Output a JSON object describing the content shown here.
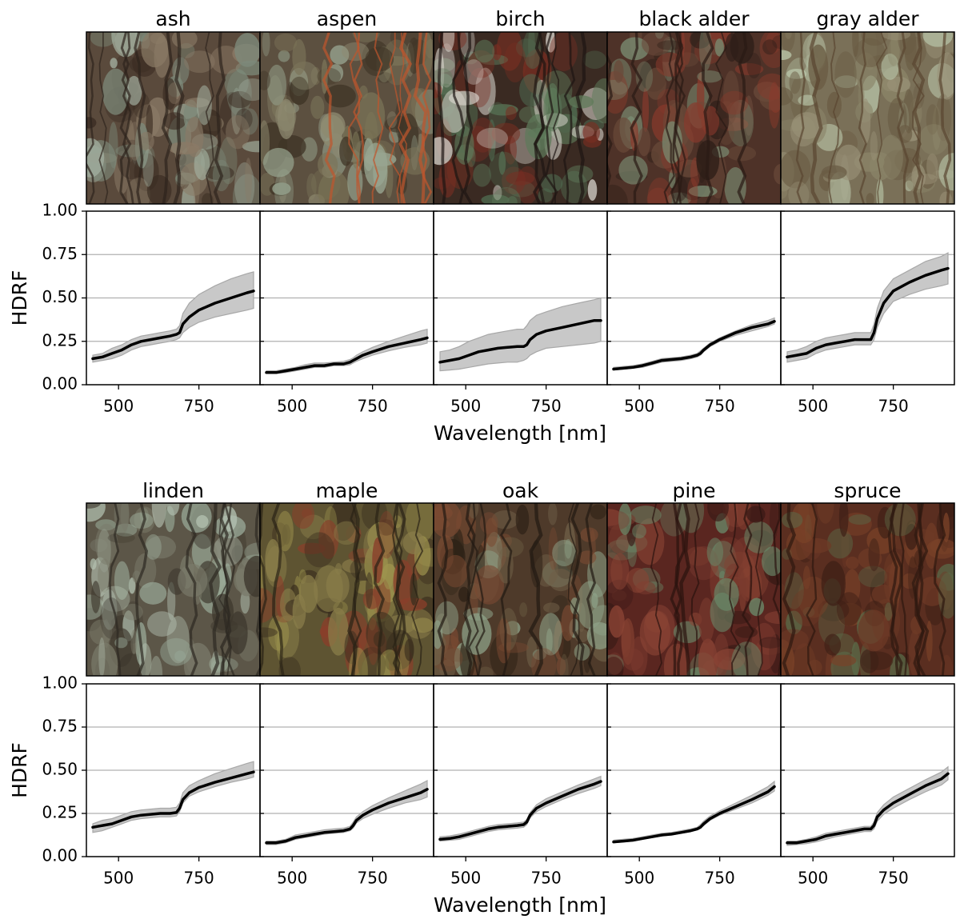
{
  "figure": {
    "xlabel": "Wavelength [nm]",
    "ylabel": "HDRF",
    "ylim": [
      0,
      1
    ],
    "xlim": [
      400,
      940
    ],
    "yticks": [
      "0.00",
      "0.25",
      "0.50",
      "0.75",
      "1.00"
    ],
    "ytick_values": [
      0,
      0.25,
      0.5,
      0.75,
      1.0
    ],
    "xticks": [
      "500",
      "750"
    ],
    "xtick_values": [
      500,
      750
    ],
    "grid": "horizontal",
    "colors": {
      "mean_line": "#000000",
      "band_fill": "#c8c8c8",
      "band_edge": "#a8a8a8",
      "grid": "#b0b0b0"
    }
  },
  "chart_data": [
    {
      "type": "area",
      "title": "ash",
      "photo": "ash-bark-photo",
      "x": [
        420,
        450,
        480,
        510,
        540,
        570,
        600,
        630,
        660,
        680,
        690,
        700,
        720,
        750,
        800,
        850,
        900,
        920
      ],
      "mean": [
        0.15,
        0.16,
        0.18,
        0.2,
        0.23,
        0.25,
        0.26,
        0.27,
        0.28,
        0.29,
        0.3,
        0.35,
        0.39,
        0.43,
        0.47,
        0.5,
        0.53,
        0.54
      ],
      "lower": [
        0.13,
        0.14,
        0.15,
        0.17,
        0.2,
        0.22,
        0.23,
        0.24,
        0.25,
        0.26,
        0.27,
        0.3,
        0.33,
        0.36,
        0.39,
        0.41,
        0.43,
        0.44
      ],
      "upper": [
        0.17,
        0.18,
        0.21,
        0.23,
        0.26,
        0.28,
        0.29,
        0.3,
        0.31,
        0.32,
        0.34,
        0.41,
        0.47,
        0.52,
        0.57,
        0.61,
        0.64,
        0.65
      ]
    },
    {
      "type": "area",
      "title": "aspen",
      "photo": "aspen-bark-photo",
      "x": [
        420,
        450,
        480,
        510,
        540,
        570,
        600,
        630,
        660,
        680,
        690,
        700,
        720,
        750,
        800,
        850,
        900,
        920
      ],
      "mean": [
        0.07,
        0.07,
        0.08,
        0.09,
        0.1,
        0.11,
        0.11,
        0.12,
        0.12,
        0.13,
        0.14,
        0.15,
        0.17,
        0.19,
        0.22,
        0.24,
        0.26,
        0.27
      ],
      "lower": [
        0.065,
        0.065,
        0.07,
        0.08,
        0.09,
        0.1,
        0.1,
        0.11,
        0.11,
        0.115,
        0.125,
        0.135,
        0.15,
        0.17,
        0.195,
        0.215,
        0.23,
        0.24
      ],
      "upper": [
        0.08,
        0.08,
        0.09,
        0.1,
        0.115,
        0.125,
        0.125,
        0.13,
        0.135,
        0.145,
        0.155,
        0.17,
        0.19,
        0.215,
        0.25,
        0.28,
        0.31,
        0.32
      ]
    },
    {
      "type": "area",
      "title": "birch",
      "photo": "birch-bark-photo",
      "x": [
        420,
        450,
        480,
        510,
        540,
        570,
        600,
        630,
        660,
        680,
        690,
        700,
        720,
        750,
        800,
        850,
        900,
        920
      ],
      "mean": [
        0.13,
        0.14,
        0.15,
        0.17,
        0.19,
        0.2,
        0.21,
        0.215,
        0.22,
        0.22,
        0.23,
        0.26,
        0.29,
        0.31,
        0.33,
        0.35,
        0.37,
        0.37
      ],
      "lower": [
        0.08,
        0.085,
        0.09,
        0.1,
        0.11,
        0.12,
        0.125,
        0.13,
        0.13,
        0.14,
        0.15,
        0.17,
        0.19,
        0.21,
        0.22,
        0.23,
        0.24,
        0.25
      ],
      "upper": [
        0.19,
        0.2,
        0.22,
        0.25,
        0.27,
        0.29,
        0.3,
        0.31,
        0.32,
        0.32,
        0.34,
        0.37,
        0.4,
        0.42,
        0.45,
        0.47,
        0.49,
        0.5
      ]
    },
    {
      "type": "area",
      "title": "black alder",
      "photo": "black-alder-bark-photo",
      "x": [
        420,
        450,
        480,
        510,
        540,
        570,
        600,
        630,
        660,
        680,
        690,
        700,
        720,
        750,
        800,
        850,
        900,
        920
      ],
      "mean": [
        0.09,
        0.095,
        0.1,
        0.11,
        0.125,
        0.14,
        0.145,
        0.15,
        0.16,
        0.17,
        0.18,
        0.2,
        0.23,
        0.26,
        0.3,
        0.33,
        0.35,
        0.365
      ],
      "lower": [
        0.085,
        0.09,
        0.095,
        0.1,
        0.115,
        0.13,
        0.135,
        0.14,
        0.15,
        0.16,
        0.17,
        0.19,
        0.22,
        0.25,
        0.285,
        0.31,
        0.335,
        0.35
      ],
      "upper": [
        0.1,
        0.105,
        0.11,
        0.12,
        0.135,
        0.15,
        0.155,
        0.16,
        0.17,
        0.18,
        0.195,
        0.21,
        0.24,
        0.27,
        0.31,
        0.345,
        0.37,
        0.385
      ]
    },
    {
      "type": "area",
      "title": "gray alder",
      "photo": "gray-alder-bark-photo",
      "x": [
        420,
        450,
        480,
        510,
        540,
        570,
        600,
        630,
        660,
        680,
        690,
        700,
        720,
        750,
        800,
        850,
        900,
        920
      ],
      "mean": [
        0.16,
        0.17,
        0.18,
        0.21,
        0.23,
        0.24,
        0.25,
        0.26,
        0.26,
        0.26,
        0.3,
        0.38,
        0.47,
        0.54,
        0.59,
        0.63,
        0.66,
        0.67
      ],
      "lower": [
        0.13,
        0.14,
        0.15,
        0.18,
        0.2,
        0.21,
        0.22,
        0.23,
        0.23,
        0.23,
        0.26,
        0.33,
        0.41,
        0.48,
        0.52,
        0.55,
        0.57,
        0.58
      ],
      "upper": [
        0.19,
        0.2,
        0.22,
        0.25,
        0.27,
        0.28,
        0.29,
        0.3,
        0.3,
        0.3,
        0.35,
        0.44,
        0.54,
        0.61,
        0.66,
        0.71,
        0.74,
        0.76
      ]
    },
    {
      "type": "area",
      "title": "linden",
      "photo": "linden-bark-photo",
      "x": [
        420,
        450,
        480,
        510,
        540,
        570,
        600,
        630,
        660,
        680,
        690,
        700,
        720,
        750,
        800,
        850,
        900,
        920
      ],
      "mean": [
        0.17,
        0.18,
        0.19,
        0.21,
        0.23,
        0.24,
        0.245,
        0.25,
        0.25,
        0.255,
        0.28,
        0.33,
        0.37,
        0.4,
        0.43,
        0.455,
        0.48,
        0.49
      ],
      "lower": [
        0.14,
        0.15,
        0.17,
        0.19,
        0.21,
        0.22,
        0.225,
        0.23,
        0.23,
        0.235,
        0.26,
        0.31,
        0.35,
        0.375,
        0.405,
        0.43,
        0.45,
        0.46
      ],
      "upper": [
        0.19,
        0.21,
        0.22,
        0.24,
        0.26,
        0.27,
        0.275,
        0.28,
        0.28,
        0.285,
        0.31,
        0.37,
        0.41,
        0.44,
        0.48,
        0.51,
        0.54,
        0.55
      ]
    },
    {
      "type": "area",
      "title": "maple",
      "photo": "maple-bark-photo",
      "x": [
        420,
        450,
        480,
        510,
        540,
        570,
        600,
        630,
        660,
        680,
        690,
        700,
        720,
        750,
        800,
        850,
        900,
        920
      ],
      "mean": [
        0.08,
        0.08,
        0.09,
        0.11,
        0.12,
        0.13,
        0.14,
        0.145,
        0.15,
        0.16,
        0.18,
        0.21,
        0.24,
        0.27,
        0.31,
        0.34,
        0.37,
        0.39
      ],
      "lower": [
        0.07,
        0.07,
        0.08,
        0.1,
        0.11,
        0.12,
        0.13,
        0.135,
        0.14,
        0.15,
        0.165,
        0.195,
        0.22,
        0.245,
        0.28,
        0.31,
        0.33,
        0.345
      ],
      "upper": [
        0.09,
        0.09,
        0.1,
        0.125,
        0.135,
        0.145,
        0.155,
        0.16,
        0.165,
        0.175,
        0.2,
        0.23,
        0.26,
        0.295,
        0.34,
        0.38,
        0.42,
        0.44
      ]
    },
    {
      "type": "area",
      "title": "oak",
      "photo": "oak-bark-photo",
      "x": [
        420,
        450,
        480,
        510,
        540,
        570,
        600,
        630,
        660,
        680,
        690,
        700,
        720,
        750,
        800,
        850,
        900,
        920
      ],
      "mean": [
        0.1,
        0.105,
        0.115,
        0.13,
        0.145,
        0.16,
        0.17,
        0.175,
        0.18,
        0.185,
        0.2,
        0.24,
        0.28,
        0.31,
        0.35,
        0.39,
        0.42,
        0.435
      ],
      "lower": [
        0.09,
        0.095,
        0.1,
        0.115,
        0.13,
        0.145,
        0.155,
        0.16,
        0.165,
        0.17,
        0.185,
        0.225,
        0.26,
        0.29,
        0.33,
        0.365,
        0.395,
        0.41
      ],
      "upper": [
        0.115,
        0.12,
        0.13,
        0.145,
        0.16,
        0.175,
        0.185,
        0.19,
        0.195,
        0.2,
        0.215,
        0.255,
        0.3,
        0.335,
        0.375,
        0.415,
        0.45,
        0.465
      ]
    },
    {
      "type": "area",
      "title": "pine",
      "photo": "pine-bark-photo",
      "x": [
        420,
        450,
        480,
        510,
        540,
        570,
        600,
        630,
        660,
        680,
        690,
        700,
        720,
        750,
        800,
        850,
        900,
        920
      ],
      "mean": [
        0.085,
        0.09,
        0.095,
        0.105,
        0.115,
        0.125,
        0.13,
        0.14,
        0.15,
        0.16,
        0.17,
        0.19,
        0.22,
        0.25,
        0.29,
        0.33,
        0.375,
        0.405
      ],
      "lower": [
        0.08,
        0.085,
        0.09,
        0.1,
        0.11,
        0.12,
        0.125,
        0.135,
        0.145,
        0.155,
        0.165,
        0.18,
        0.21,
        0.24,
        0.275,
        0.31,
        0.355,
        0.38
      ],
      "upper": [
        0.095,
        0.1,
        0.105,
        0.115,
        0.125,
        0.135,
        0.14,
        0.15,
        0.16,
        0.17,
        0.185,
        0.205,
        0.235,
        0.265,
        0.31,
        0.355,
        0.405,
        0.435
      ]
    },
    {
      "type": "area",
      "title": "spruce",
      "photo": "spruce-bark-photo",
      "x": [
        420,
        450,
        480,
        510,
        540,
        570,
        600,
        630,
        660,
        680,
        690,
        700,
        720,
        750,
        800,
        850,
        900,
        920
      ],
      "mean": [
        0.08,
        0.08,
        0.09,
        0.1,
        0.12,
        0.13,
        0.14,
        0.15,
        0.16,
        0.16,
        0.18,
        0.23,
        0.27,
        0.31,
        0.36,
        0.41,
        0.45,
        0.48
      ],
      "lower": [
        0.065,
        0.07,
        0.075,
        0.085,
        0.1,
        0.115,
        0.125,
        0.135,
        0.145,
        0.145,
        0.16,
        0.205,
        0.245,
        0.28,
        0.33,
        0.375,
        0.415,
        0.445
      ],
      "upper": [
        0.09,
        0.09,
        0.1,
        0.115,
        0.135,
        0.145,
        0.155,
        0.165,
        0.175,
        0.175,
        0.2,
        0.255,
        0.3,
        0.345,
        0.395,
        0.445,
        0.49,
        0.52
      ]
    }
  ],
  "bark_textures": [
    {
      "base": "#5a4a3c",
      "blotch": [
        "#7d8a7a",
        "#3a2c22",
        "#8a7a66",
        "#a3b0a0"
      ],
      "streak": "#2e241c"
    },
    {
      "base": "#5c5040",
      "blotch": [
        "#7b7458",
        "#3f3426",
        "#8e8a70",
        "#98a590"
      ],
      "streak": "#c0562c"
    },
    {
      "base": "#3a2a22",
      "blotch": [
        "#5e7a5a",
        "#7a2e22",
        "#d8d4cc",
        "#4f6a50"
      ],
      "streak": "#1e1612"
    },
    {
      "base": "#4e3228",
      "blotch": [
        "#6a4a3a",
        "#2e1e18",
        "#7a8c72",
        "#8a3a2c"
      ],
      "streak": "#2a1a14"
    },
    {
      "base": "#7a7058",
      "blotch": [
        "#8a8468",
        "#6a5c44",
        "#b8c4a8",
        "#9a9278"
      ],
      "streak": "#5a4630"
    },
    {
      "base": "#5c5648",
      "blotch": [
        "#9aaa98",
        "#3e382e",
        "#b4c2b2",
        "#7a7a6a"
      ],
      "streak": "#2e2a22"
    },
    {
      "base": "#5e5432",
      "blotch": [
        "#8a7e4a",
        "#3a2e1e",
        "#9e944e",
        "#8a3e2a"
      ],
      "streak": "#2a2216"
    },
    {
      "base": "#4e3a2a",
      "blotch": [
        "#6e5e46",
        "#2e2216",
        "#8ea288",
        "#7a4a32"
      ],
      "streak": "#221a12"
    },
    {
      "base": "#5a2620",
      "blotch": [
        "#7a3a2e",
        "#3a1a16",
        "#6a8a6a",
        "#8a4434"
      ],
      "streak": "#2a120e"
    },
    {
      "base": "#5a2e20",
      "blotch": [
        "#6e3a26",
        "#3e2016",
        "#5a6a48",
        "#7a4228"
      ],
      "streak": "#2e1810"
    }
  ]
}
